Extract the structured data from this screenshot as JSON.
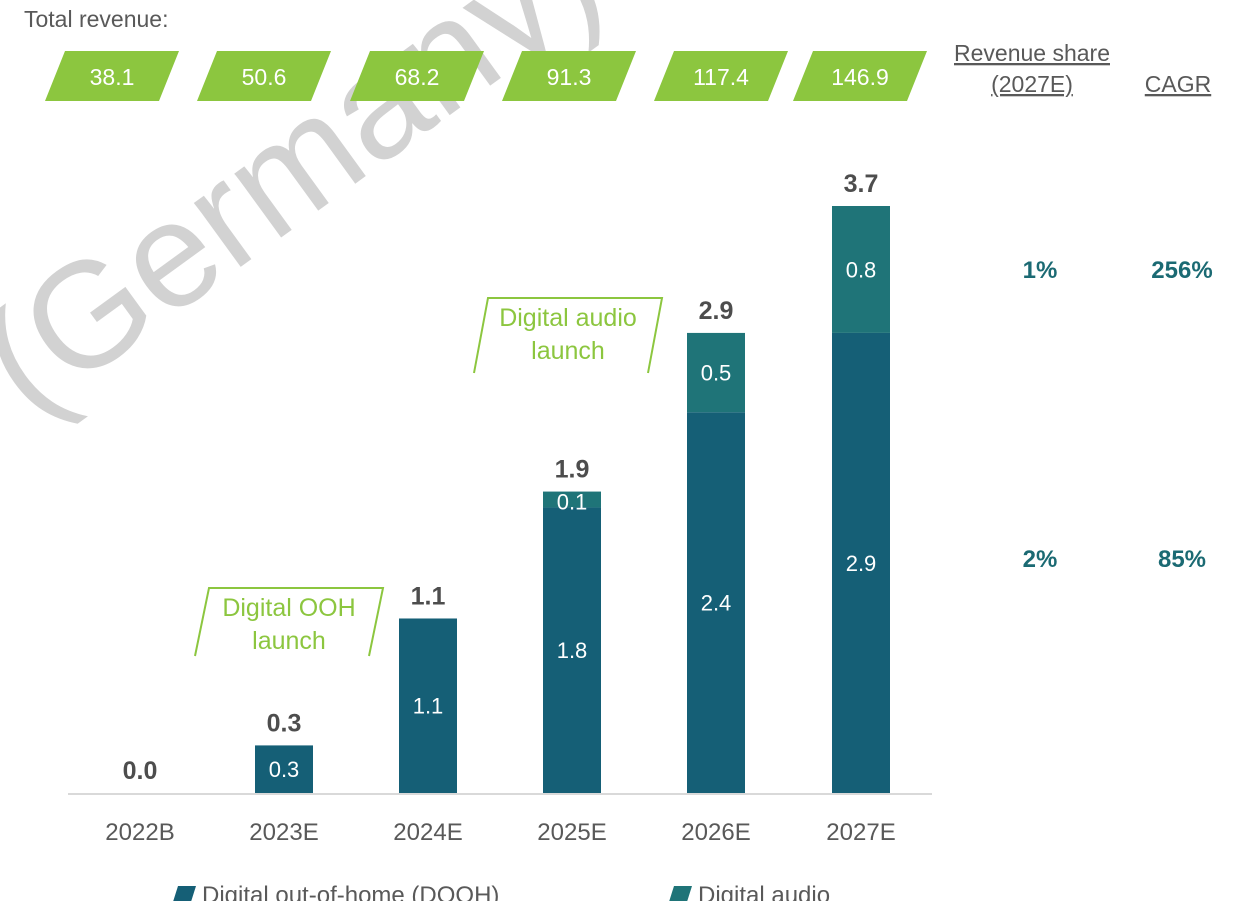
{
  "watermark": "(Germany) Gm",
  "chart_data": {
    "type": "bar",
    "stacked": true,
    "total_revenue_label": "Total revenue:",
    "total_revenue": [
      "38.1",
      "50.6",
      "68.2",
      "91.3",
      "117.4",
      "146.9"
    ],
    "categories": [
      "2022B",
      "2023E",
      "2024E",
      "2025E",
      "2026E",
      "2027E"
    ],
    "series": [
      {
        "name": "Digital out-of-home (DOOH)",
        "color": "#155f76",
        "values": [
          0.0,
          0.3,
          1.1,
          1.8,
          2.4,
          2.9
        ],
        "labels": [
          "",
          "0.3",
          "1.1",
          "1.8",
          "2.4",
          "2.9"
        ],
        "revenue_share": "2%",
        "cagr": "85%"
      },
      {
        "name": "Digital audio",
        "color": "#1f7478",
        "values": [
          0.0,
          0.0,
          0.0,
          0.1,
          0.5,
          0.8
        ],
        "labels": [
          "",
          "",
          "",
          "0.1",
          "0.5",
          "0.8"
        ],
        "revenue_share": "1%",
        "cagr": "256%"
      }
    ],
    "totals": [
      "0.0",
      "0.3",
      "1.1",
      "1.9",
      "2.9",
      "3.7"
    ],
    "ylim": [
      0,
      3.7
    ],
    "revenue_share_header": [
      "Revenue share",
      "(2027E)"
    ],
    "cagr_header": "CAGR",
    "annotations": [
      {
        "lines": [
          "Digital OOH",
          "launch"
        ],
        "category": "2023E"
      },
      {
        "lines": [
          "Digital audio",
          "launch"
        ],
        "category": "2025E"
      }
    ],
    "legend_position": "bottom",
    "colors": {
      "accent_green": "#8cc63f",
      "value_teal": "#1b6a73",
      "text_dark": "#4d4d4d",
      "text_mid": "#595959"
    }
  }
}
